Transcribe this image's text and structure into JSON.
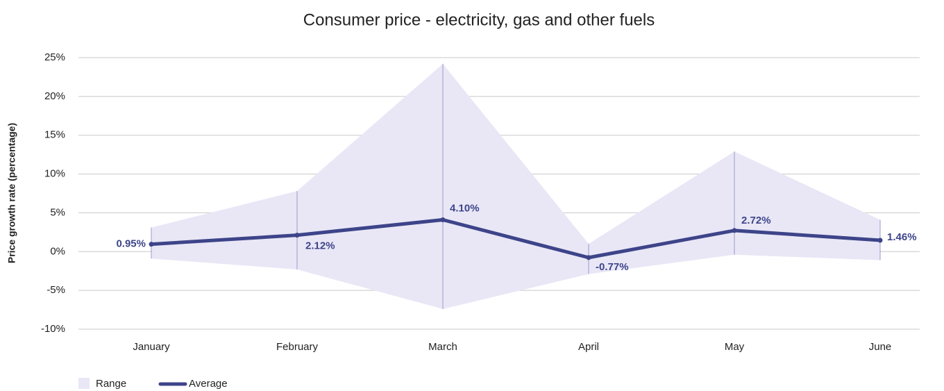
{
  "chart_data": {
    "type": "line",
    "title": "Consumer price - electricity, gas and other fuels",
    "y_label": "Price growth rate (percentage)",
    "categories": [
      "January",
      "February",
      "March",
      "April",
      "May",
      "June"
    ],
    "series": [
      {
        "name": "Range",
        "color": "#e9e7f6",
        "line_color": "#9a98c8",
        "high": [
          3.1,
          7.8,
          24.2,
          1.0,
          12.9,
          4.1
        ],
        "low": [
          -0.9,
          -2.3,
          -7.4,
          -2.9,
          -0.4,
          -1.1
        ]
      },
      {
        "name": "Average",
        "color": "#3d4489",
        "values": [
          0.95,
          2.12,
          4.1,
          -0.77,
          2.72,
          1.46
        ],
        "value_labels": [
          "0.95%",
          "2.12%",
          "4.10%",
          "-0.77%",
          "2.72%",
          "1.46%"
        ]
      }
    ],
    "ylim": [
      -10,
      25
    ],
    "yticks": [
      {
        "value": -10,
        "label": "-10%"
      },
      {
        "value": -5,
        "label": "-5%"
      },
      {
        "value": 0,
        "label": "0%"
      },
      {
        "value": 5,
        "label": "5%"
      },
      {
        "value": 10,
        "label": "10%"
      },
      {
        "value": 15,
        "label": "15%"
      },
      {
        "value": 20,
        "label": "20%"
      },
      {
        "value": 25,
        "label": "25%"
      }
    ],
    "grid": true,
    "legend": "bottom-left"
  }
}
